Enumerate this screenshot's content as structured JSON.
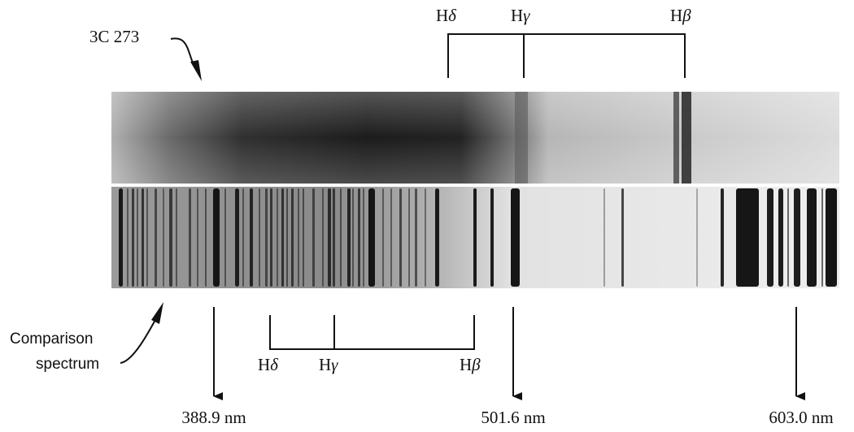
{
  "source_label": "3C 273",
  "comparison_label_line1": "Comparison",
  "comparison_label_line2": "spectrum",
  "top_lines": [
    {
      "element": "H",
      "greek": "δ"
    },
    {
      "element": "H",
      "greek": "γ"
    },
    {
      "element": "H",
      "greek": "β"
    }
  ],
  "bottom_lines": [
    {
      "element": "H",
      "greek": "δ"
    },
    {
      "element": "H",
      "greek": "γ"
    },
    {
      "element": "H",
      "greek": "β"
    }
  ],
  "wavelengths": [
    "388.9 nm",
    "501.6 nm",
    "603.0 nm"
  ],
  "colors": {
    "ink": "#111111",
    "strip_bg": "#e6e6e6"
  }
}
